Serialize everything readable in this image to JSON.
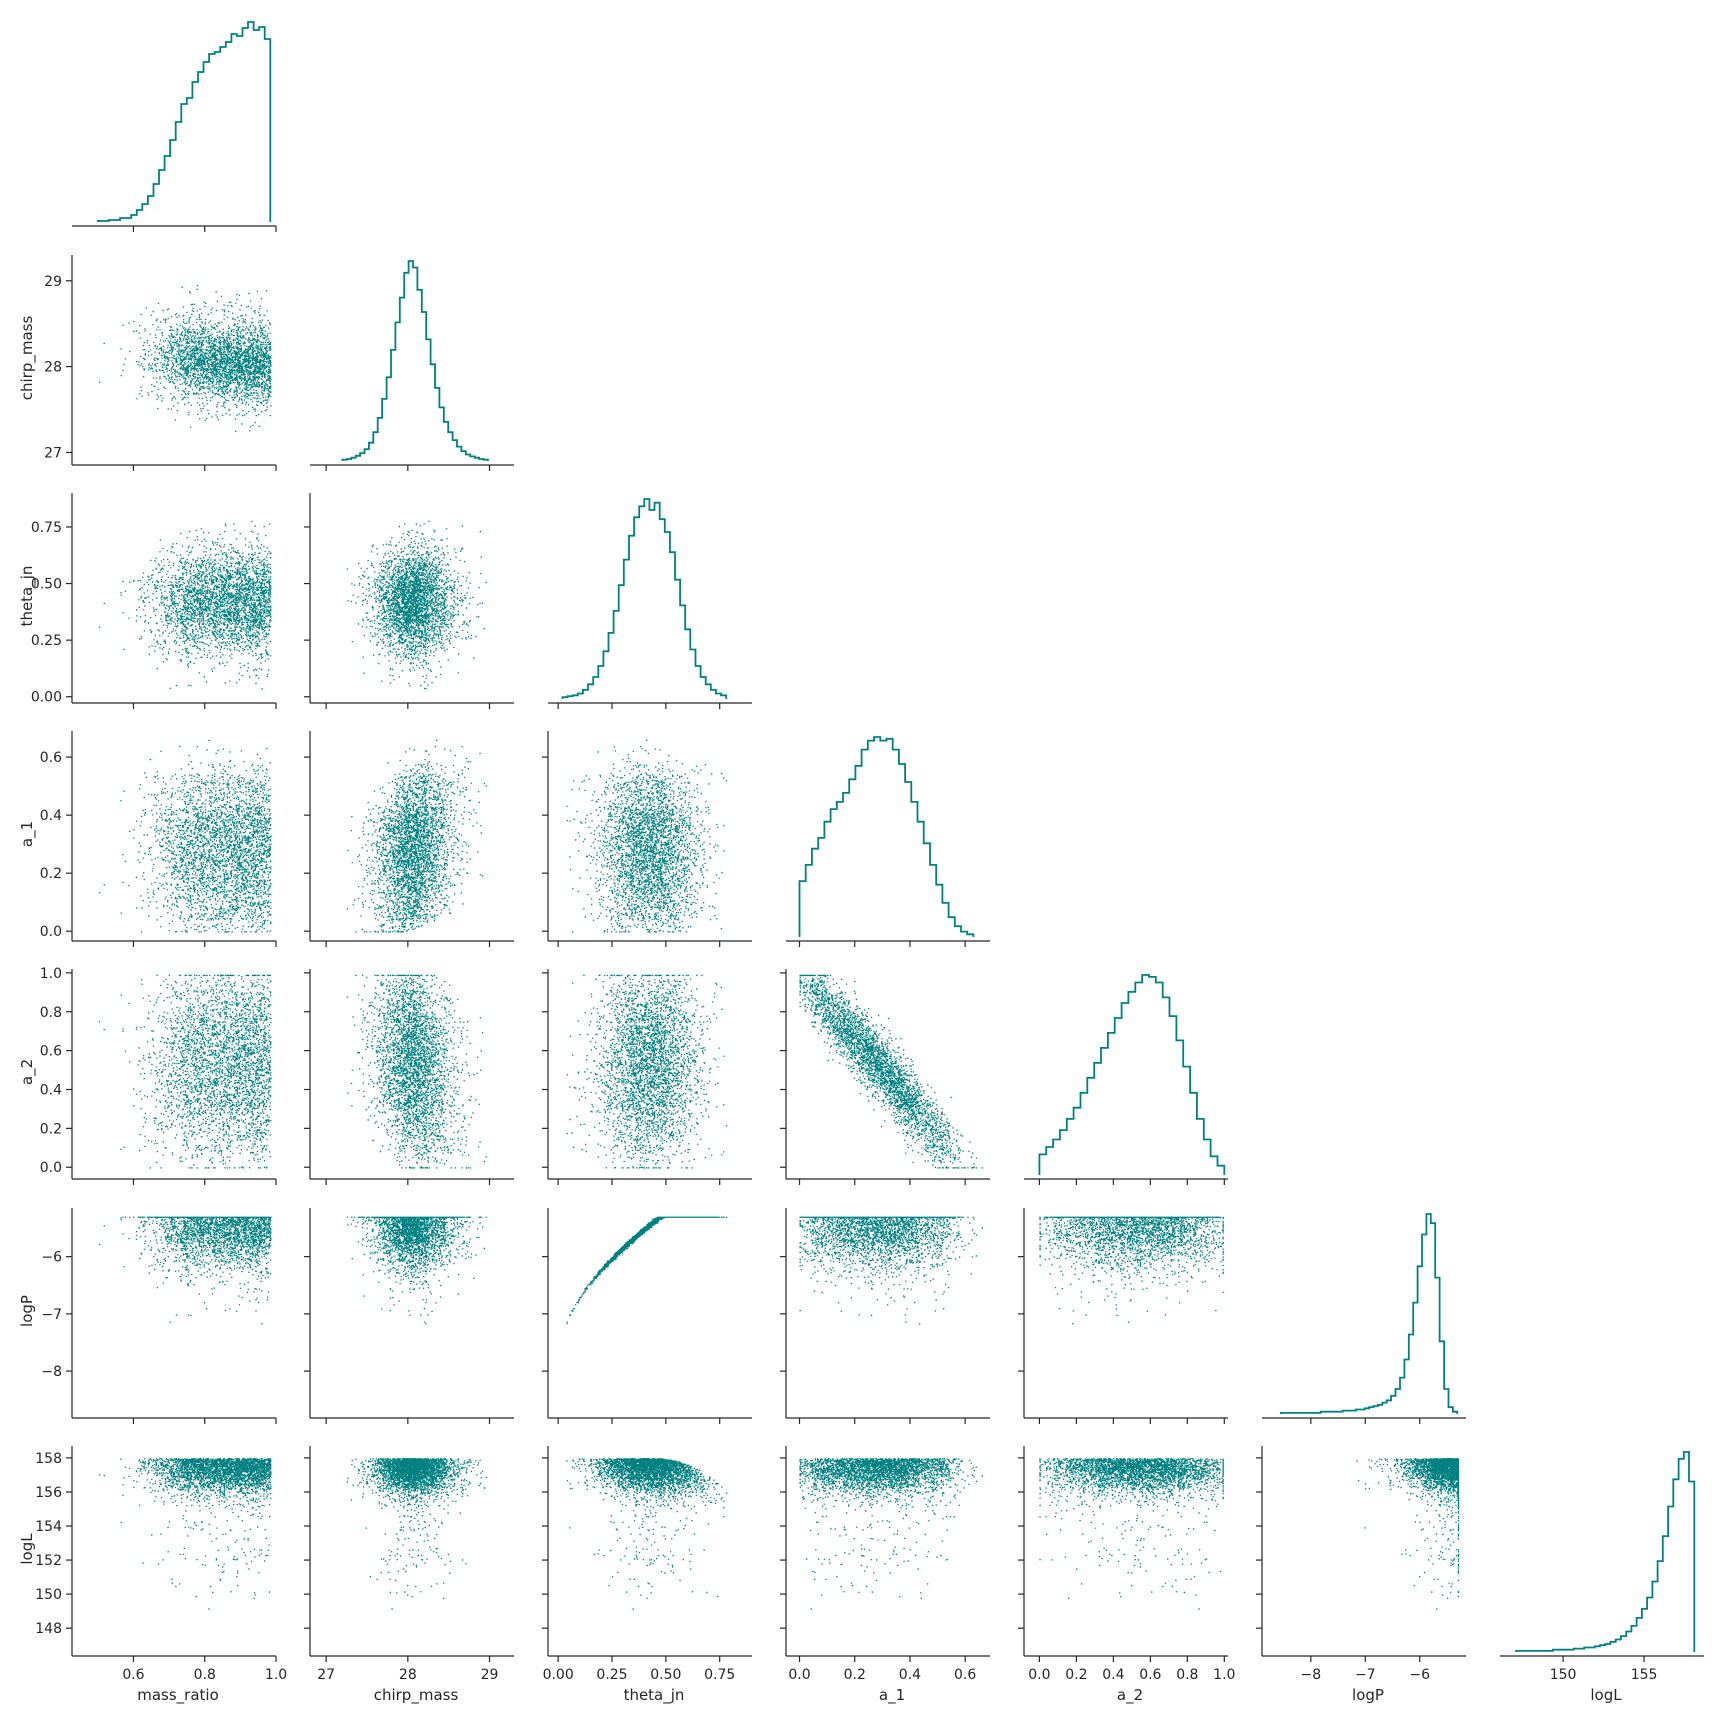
{
  "chart_data": {
    "type": "scatter",
    "layout": "corner-pairplot",
    "color": "#008080",
    "variables": [
      {
        "name": "mass_ratio",
        "range": [
          0.45,
          1.0
        ],
        "ticks": [
          {
            "v": 0.6,
            "t": "0.6"
          },
          {
            "v": 0.8,
            "t": "0.8"
          },
          {
            "v": 1.0,
            "t": "1.0"
          }
        ]
      },
      {
        "name": "chirp_mass",
        "range": [
          26.9,
          29.3
        ],
        "ticks": [
          {
            "v": 27,
            "t": "27"
          },
          {
            "v": 28,
            "t": "28"
          },
          {
            "v": 29,
            "t": "29"
          }
        ]
      },
      {
        "name": "theta_jn",
        "range": [
          -0.01,
          0.9
        ],
        "ticks": [
          {
            "v": 0.0,
            "t": "0.00"
          },
          {
            "v": 0.25,
            "t": "0.25"
          },
          {
            "v": 0.5,
            "t": "0.50"
          },
          {
            "v": 0.75,
            "t": "0.75"
          }
        ]
      },
      {
        "name": "a_1",
        "range": [
          -0.02,
          0.69
        ],
        "ticks": [
          {
            "v": 0.0,
            "t": "0.0"
          },
          {
            "v": 0.2,
            "t": "0.2"
          },
          {
            "v": 0.4,
            "t": "0.4"
          },
          {
            "v": 0.6,
            "t": "0.6"
          }
        ]
      },
      {
        "name": "a_2",
        "range": [
          -0.04,
          1.02
        ],
        "ticks": [
          {
            "v": 0.0,
            "t": "0.0"
          },
          {
            "v": 0.2,
            "t": "0.2"
          },
          {
            "v": 0.4,
            "t": "0.4"
          },
          {
            "v": 0.6,
            "t": "0.6"
          },
          {
            "v": 0.8,
            "t": "0.8"
          },
          {
            "v": 1.0,
            "t": "1.0"
          }
        ]
      },
      {
        "name": "logP",
        "range": [
          -8.75,
          -5.15
        ],
        "ticks": [
          {
            "v": -8,
            "t": "−8"
          },
          {
            "v": -7,
            "t": "−7"
          },
          {
            "v": -6,
            "t": "−6"
          }
        ]
      },
      {
        "name": "logL",
        "range": [
          146.6,
          158.7
        ],
        "ticks": [
          {
            "v": 148,
            "t": "148"
          },
          {
            "v": 150,
            "t": "150"
          },
          {
            "v": 152,
            "t": "152"
          },
          {
            "v": 154,
            "t": "154"
          },
          {
            "v": 156,
            "t": "156"
          },
          {
            "v": 158,
            "t": "158"
          }
        ],
        "xticks": [
          {
            "v": 150,
            "t": "150"
          },
          {
            "v": 155,
            "t": "155"
          }
        ]
      }
    ],
    "histograms": {
      "mass_ratio": {
        "edges": [
          0.5,
          0.984
        ],
        "counts": [
          1,
          1,
          2,
          2,
          4,
          4,
          7,
          12,
          18,
          26,
          38,
          52,
          66,
          82,
          100,
          118,
          124,
          140,
          150,
          160,
          168,
          170,
          175,
          180,
          188,
          186,
          194,
          200,
          192,
          195,
          183
        ]
      },
      "chirp_mass": {
        "edges": [
          27.2,
          28.98
        ],
        "counts": [
          2,
          3,
          5,
          8,
          12,
          18,
          28,
          44,
          66,
          95,
          128,
          170,
          212,
          250,
          288,
          306,
          296,
          262,
          228,
          186,
          148,
          112,
          82,
          60,
          44,
          32,
          22,
          15,
          10,
          7,
          5,
          3,
          2
        ]
      },
      "theta_jn": {
        "edges": [
          0.02,
          0.78
        ],
        "counts": [
          2,
          3,
          4,
          6,
          10,
          16,
          24,
          36,
          52,
          72,
          96,
          124,
          152,
          178,
          198,
          210,
          218,
          206,
          214,
          196,
          182,
          160,
          130,
          102,
          76,
          54,
          36,
          24,
          16,
          10,
          6,
          4
        ]
      },
      "a_1": {
        "edges": [
          0.0,
          0.63
        ],
        "counts": [
          62,
          80,
          98,
          110,
          128,
          142,
          150,
          160,
          175,
          190,
          208,
          218,
          222,
          218,
          220,
          208,
          192,
          172,
          150,
          128,
          104,
          80,
          58,
          38,
          22,
          12,
          6,
          3
        ]
      },
      "a_2": {
        "edges": [
          0.0,
          1.0
        ],
        "counts": [
          22,
          30,
          38,
          48,
          60,
          72,
          88,
          104,
          120,
          136,
          152,
          168,
          184,
          196,
          206,
          214,
          212,
          206,
          190,
          170,
          144,
          116,
          88,
          60,
          38,
          20,
          10
        ]
      },
      "logP": {
        "edges": [
          -8.55,
          -5.31
        ],
        "counts": [
          1,
          1,
          1,
          1,
          1,
          1,
          1,
          1,
          1,
          2,
          2,
          2,
          2,
          2,
          3,
          3,
          3,
          4,
          4,
          5,
          6,
          7,
          8,
          10,
          12,
          16,
          22,
          32,
          48,
          70,
          98,
          130,
          158,
          176,
          168,
          120,
          64,
          22,
          6,
          2
        ]
      },
      "logL": {
        "edges": [
          147.1,
          158.1
        ],
        "counts": [
          1,
          1,
          1,
          1,
          1,
          1,
          1,
          2,
          2,
          2,
          2,
          3,
          3,
          4,
          4,
          5,
          6,
          7,
          9,
          11,
          14,
          18,
          23,
          30,
          38,
          48,
          62,
          80,
          102,
          128,
          152,
          170,
          176,
          150
        ]
      }
    }
  }
}
